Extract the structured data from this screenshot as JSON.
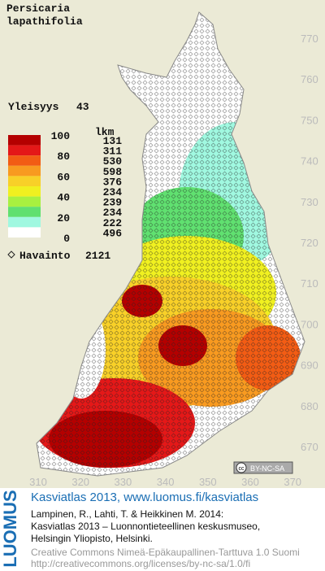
{
  "species": {
    "genus": "Persicaria",
    "epithet": "lapathifolia"
  },
  "frequency": {
    "label": "Yleisyys",
    "value": 43.0
  },
  "legend": {
    "count_header": "lkm",
    "scale_labels": [
      100,
      80,
      60,
      40,
      20,
      0
    ],
    "bands": [
      {
        "color": "#b40000",
        "count": 131
      },
      {
        "color": "#e41818",
        "count": 311
      },
      {
        "color": "#f25c14",
        "count": 530
      },
      {
        "color": "#f89a20",
        "count": 598
      },
      {
        "color": "#f8d028",
        "count": 376
      },
      {
        "color": "#f0f020",
        "count": 234
      },
      {
        "color": "#a8f040",
        "count": 239
      },
      {
        "color": "#60e070",
        "count": 234
      },
      {
        "color": "#a0f8e0",
        "count": 222
      },
      {
        "color": "#ffffff",
        "count": 496
      }
    ]
  },
  "observations": {
    "label": "Havainto",
    "count": 2121
  },
  "map": {
    "y_labels": [
      770,
      760,
      750,
      740,
      730,
      720,
      710,
      700,
      690,
      680,
      670
    ],
    "x_labels": [
      310,
      320,
      330,
      340,
      350,
      360,
      370
    ],
    "license_badge": "BY-NC-SA",
    "cc_badge": "cc"
  },
  "footer": {
    "brand": "LUOMUS",
    "atlas": "Kasviatlas 2013, www.luomus.fi/kasviatlas",
    "citation": [
      "Lampinen, R., Lahti, T. & Heikkinen M. 2014:",
      "Kasviatlas 2013 – Luonnontieteellinen keskusmuseo,",
      "Helsingin Yliopisto, Helsinki."
    ],
    "license": [
      "Creative Commons Nimeä-Epäkaupallinen-Tarttuva 1.0 Suomi",
      "http://creativecommons.org/licenses/by-nc-sa/1.0/fi"
    ]
  }
}
